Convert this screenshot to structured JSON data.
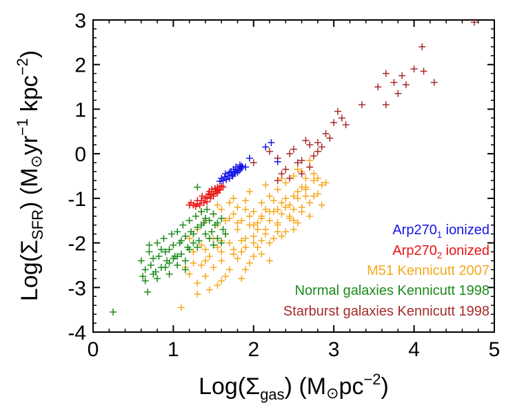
{
  "chart_data": {
    "type": "scatter",
    "title": "",
    "xlabel": "Log(Σgas) (M⊙pc⁻²)",
    "ylabel": "Log(ΣSFR) (M⊙yr⁻¹ kpc⁻²)",
    "xlabel_parts": {
      "pre": "Log(Σ",
      "sub": "gas",
      "mid": ") (M",
      "sun": "⊙",
      "unit": "pc",
      "sup": "−2",
      "post": ")"
    },
    "ylabel_parts": {
      "pre": "Log(Σ",
      "sub": "SFR",
      "mid": ") (M",
      "sun": "⊙",
      "unit1": "yr",
      "sup1": "−1",
      "unit2": " kpc",
      "sup2": "−2",
      "post": ")"
    },
    "xlim": [
      0,
      5
    ],
    "ylim": [
      -4,
      3
    ],
    "xticks": [
      "0",
      "1",
      "2",
      "3",
      "4",
      "5"
    ],
    "yticks": [
      "-4",
      "-3",
      "-2",
      "-1",
      "0",
      "1",
      "2",
      "3"
    ],
    "grid": false,
    "legend_position": "bottom-right",
    "marker": "+",
    "series": [
      {
        "name": "Arp270₁ ionized",
        "label_base": "Arp270",
        "label_sub": "1",
        "label_suffix": " ionized",
        "color": "#1414e6",
        "points": [
          [
            1.65,
            -0.45
          ],
          [
            1.68,
            -0.5
          ],
          [
            1.7,
            -0.42
          ],
          [
            1.72,
            -0.4
          ],
          [
            1.73,
            -0.48
          ],
          [
            1.75,
            -0.35
          ],
          [
            1.76,
            -0.45
          ],
          [
            1.78,
            -0.3
          ],
          [
            1.8,
            -0.35
          ],
          [
            1.82,
            -0.38
          ],
          [
            1.83,
            -0.25
          ],
          [
            1.85,
            -0.28
          ],
          [
            1.6,
            -0.55
          ],
          [
            1.62,
            -0.6
          ],
          [
            1.64,
            -0.52
          ],
          [
            1.66,
            -0.58
          ],
          [
            1.7,
            -0.55
          ],
          [
            1.74,
            -0.5
          ],
          [
            1.77,
            -0.4
          ],
          [
            1.8,
            -0.42
          ],
          [
            1.84,
            -0.33
          ],
          [
            1.86,
            -0.3
          ],
          [
            1.58,
            -0.62
          ],
          [
            1.9,
            -0.3
          ],
          [
            1.95,
            -0.1
          ],
          [
            2.15,
            0.15
          ],
          [
            2.22,
            0.25
          ],
          [
            2.3,
            -0.18
          ]
        ]
      },
      {
        "name": "Arp270₂ ionized",
        "label_base": "Arp270",
        "label_sub": "2",
        "label_suffix": " ionized",
        "color": "#e81414",
        "points": [
          [
            1.2,
            -1.15
          ],
          [
            1.25,
            -1.15
          ],
          [
            1.28,
            -1.18
          ],
          [
            1.3,
            -1.12
          ],
          [
            1.33,
            -1.15
          ],
          [
            1.35,
            -1.05
          ],
          [
            1.38,
            -1.1
          ],
          [
            1.4,
            -1.0
          ],
          [
            1.42,
            -0.98
          ],
          [
            1.44,
            -0.9
          ],
          [
            1.45,
            -0.85
          ],
          [
            1.47,
            -0.92
          ],
          [
            1.48,
            -0.8
          ],
          [
            1.5,
            -0.9
          ],
          [
            1.52,
            -0.78
          ],
          [
            1.53,
            -0.85
          ],
          [
            1.55,
            -0.75
          ],
          [
            1.56,
            -0.82
          ],
          [
            1.58,
            -0.8
          ],
          [
            1.6,
            -0.72
          ],
          [
            1.62,
            -0.75
          ],
          [
            1.42,
            -1.08
          ],
          [
            1.46,
            -1.0
          ],
          [
            1.5,
            -0.95
          ],
          [
            1.36,
            -0.95
          ],
          [
            1.55,
            -0.88
          ],
          [
            1.3,
            -1.05
          ],
          [
            1.22,
            -1.1
          ]
        ]
      },
      {
        "name": "M51 Kennicutt 2007",
        "color": "#f5a81c",
        "points": [
          [
            1.1,
            -3.45
          ],
          [
            1.2,
            -2.7
          ],
          [
            1.25,
            -2.2
          ],
          [
            1.3,
            -2.9
          ],
          [
            1.35,
            -2.5
          ],
          [
            1.4,
            -2.15
          ],
          [
            1.45,
            -2.3
          ],
          [
            1.5,
            -1.9
          ],
          [
            1.55,
            -2.1
          ],
          [
            1.6,
            -2.4
          ],
          [
            1.65,
            -1.8
          ],
          [
            1.7,
            -2.0
          ],
          [
            1.75,
            -2.25
          ],
          [
            1.8,
            -1.7
          ],
          [
            1.85,
            -1.95
          ],
          [
            1.9,
            -2.6
          ],
          [
            1.95,
            -1.6
          ],
          [
            2.0,
            -1.85
          ],
          [
            2.05,
            -2.1
          ],
          [
            2.1,
            -1.4
          ],
          [
            2.15,
            -1.7
          ],
          [
            2.2,
            -2.0
          ],
          [
            2.25,
            -1.3
          ],
          [
            2.3,
            -1.55
          ],
          [
            2.35,
            -1.85
          ],
          [
            2.4,
            -1.2
          ],
          [
            2.45,
            -1.45
          ],
          [
            2.5,
            -1.7
          ],
          [
            2.55,
            -1.0
          ],
          [
            2.6,
            -1.3
          ],
          [
            2.65,
            -0.8
          ],
          [
            2.7,
            -1.1
          ],
          [
            2.75,
            -0.6
          ],
          [
            2.8,
            -0.9
          ],
          [
            2.85,
            -0.7
          ],
          [
            1.4,
            -1.5
          ],
          [
            1.5,
            -1.35
          ],
          [
            1.6,
            -1.25
          ],
          [
            1.7,
            -1.45
          ],
          [
            1.8,
            -1.2
          ],
          [
            1.9,
            -1.05
          ],
          [
            2.0,
            -1.3
          ],
          [
            2.1,
            -1.1
          ],
          [
            2.2,
            -0.95
          ],
          [
            2.3,
            -0.8
          ],
          [
            2.4,
            -0.65
          ],
          [
            2.5,
            -0.5
          ],
          [
            2.6,
            -0.4
          ],
          [
            2.7,
            -0.3
          ],
          [
            1.3,
            -1.7
          ],
          [
            1.45,
            -1.9
          ],
          [
            1.55,
            -1.6
          ],
          [
            1.65,
            -1.5
          ],
          [
            1.75,
            -1.35
          ],
          [
            1.85,
            -1.5
          ],
          [
            1.95,
            -1.4
          ],
          [
            2.05,
            -1.55
          ],
          [
            2.15,
            -1.25
          ],
          [
            2.25,
            -1.05
          ],
          [
            2.35,
            -1.35
          ],
          [
            2.45,
            -1.15
          ],
          [
            2.55,
            -0.85
          ],
          [
            2.65,
            -0.55
          ],
          [
            2.75,
            -0.45
          ],
          [
            1.2,
            -1.9
          ],
          [
            1.35,
            -2.05
          ],
          [
            1.5,
            -2.55
          ],
          [
            1.65,
            -2.75
          ],
          [
            1.8,
            -2.35
          ],
          [
            1.95,
            -2.45
          ],
          [
            2.1,
            -2.25
          ],
          [
            2.25,
            -1.9
          ],
          [
            2.4,
            -1.75
          ],
          [
            2.55,
            -1.55
          ],
          [
            2.7,
            -1.4
          ],
          [
            2.85,
            -1.15
          ],
          [
            1.25,
            -2.45
          ],
          [
            1.4,
            -2.75
          ],
          [
            1.55,
            -2.95
          ],
          [
            1.7,
            -2.6
          ],
          [
            1.85,
            -2.2
          ],
          [
            2.0,
            -2.0
          ],
          [
            2.15,
            -1.8
          ],
          [
            2.3,
            -1.6
          ],
          [
            2.45,
            -1.4
          ],
          [
            2.6,
            -1.2
          ],
          [
            2.75,
            -0.95
          ],
          [
            1.3,
            -3.15
          ],
          [
            1.45,
            -3.05
          ],
          [
            1.6,
            -2.85
          ],
          [
            1.75,
            -2.15
          ],
          [
            1.9,
            -1.9
          ],
          [
            2.05,
            -1.7
          ],
          [
            2.2,
            -1.5
          ],
          [
            2.35,
            -1.1
          ],
          [
            2.5,
            -0.95
          ],
          [
            2.65,
            -0.75
          ],
          [
            2.8,
            -0.55
          ],
          [
            1.55,
            -1.15
          ],
          [
            1.75,
            -1.0
          ],
          [
            1.95,
            -0.85
          ],
          [
            2.15,
            -0.7
          ],
          [
            2.35,
            -0.55
          ],
          [
            2.55,
            -0.35
          ],
          [
            2.7,
            -0.15
          ],
          [
            2.9,
            -0.65
          ],
          [
            2.0,
            -2.3
          ],
          [
            2.2,
            -2.4
          ],
          [
            1.85,
            -2.8
          ],
          [
            1.15,
            -2.55
          ],
          [
            1.35,
            -1.3
          ],
          [
            1.6,
            -1.95
          ],
          [
            1.8,
            -1.55
          ],
          [
            2.0,
            -1.6
          ],
          [
            2.2,
            -1.3
          ],
          [
            2.4,
            -1.0
          ],
          [
            2.6,
            -0.75
          ],
          [
            1.7,
            -1.1
          ],
          [
            1.9,
            -1.25
          ],
          [
            2.1,
            -1.45
          ],
          [
            2.3,
            -1.25
          ],
          [
            2.5,
            -1.25
          ],
          [
            2.65,
            -0.95
          ],
          [
            1.4,
            -2.4
          ],
          [
            1.6,
            -2.2
          ],
          [
            1.9,
            -2.1
          ],
          [
            2.1,
            -1.95
          ],
          [
            2.3,
            -1.75
          ],
          [
            2.5,
            -1.5
          ]
        ]
      },
      {
        "name": "Normal galaxies Kennicutt 1998",
        "color": "#1a8a1a",
        "points": [
          [
            0.25,
            -3.55
          ],
          [
            0.6,
            -2.4
          ],
          [
            0.62,
            -2.75
          ],
          [
            0.65,
            -2.85
          ],
          [
            0.68,
            -3.1
          ],
          [
            0.7,
            -2.2
          ],
          [
            0.72,
            -2.5
          ],
          [
            0.75,
            -2.35
          ],
          [
            0.78,
            -2.65
          ],
          [
            0.8,
            -2.0
          ],
          [
            0.82,
            -2.3
          ],
          [
            0.85,
            -2.55
          ],
          [
            0.88,
            -1.9
          ],
          [
            0.9,
            -2.2
          ],
          [
            0.92,
            -2.4
          ],
          [
            0.95,
            -2.7
          ],
          [
            0.98,
            -1.8
          ],
          [
            1.0,
            -2.05
          ],
          [
            1.02,
            -2.3
          ],
          [
            1.05,
            -1.75
          ],
          [
            1.08,
            -2.0
          ],
          [
            1.1,
            -2.25
          ],
          [
            1.12,
            -1.6
          ],
          [
            1.15,
            -1.85
          ],
          [
            1.18,
            -2.1
          ],
          [
            1.2,
            -1.5
          ],
          [
            1.22,
            -1.75
          ],
          [
            1.25,
            -2.0
          ],
          [
            1.28,
            -1.4
          ],
          [
            1.3,
            -1.65
          ],
          [
            1.32,
            -1.95
          ],
          [
            1.35,
            -1.3
          ],
          [
            1.38,
            -1.55
          ],
          [
            1.4,
            -1.8
          ],
          [
            1.42,
            -1.25
          ],
          [
            1.45,
            -1.5
          ],
          [
            1.48,
            -1.75
          ],
          [
            1.5,
            -1.35
          ],
          [
            1.52,
            -1.6
          ],
          [
            1.55,
            -1.9
          ],
          [
            1.3,
            -0.75
          ],
          [
            1.6,
            -1.45
          ],
          [
            1.62,
            -1.7
          ],
          [
            0.8,
            -2.8
          ],
          [
            0.95,
            -2.45
          ],
          [
            1.05,
            -2.5
          ],
          [
            1.15,
            -2.6
          ],
          [
            0.7,
            -2.05
          ],
          [
            0.85,
            -2.15
          ],
          [
            1.0,
            -2.35
          ],
          [
            0.9,
            -2.55
          ],
          [
            1.1,
            -1.95
          ],
          [
            1.2,
            -2.15
          ],
          [
            1.25,
            -1.8
          ],
          [
            1.35,
            -1.6
          ],
          [
            1.45,
            -1.9
          ],
          [
            1.6,
            -2.0
          ],
          [
            1.55,
            -1.55
          ],
          [
            1.4,
            -1.45
          ],
          [
            0.75,
            -2.7
          ],
          [
            0.65,
            -2.6
          ],
          [
            0.95,
            -2.15
          ],
          [
            1.05,
            -2.3
          ],
          [
            1.15,
            -2.4
          ],
          [
            1.3,
            -2.1
          ],
          [
            1.5,
            -2.05
          ],
          [
            1.65,
            -1.8
          ]
        ]
      },
      {
        "name": "Starburst galaxies Kennicutt 1998",
        "color": "#a52a2a",
        "points": [
          [
            1.85,
            -0.3
          ],
          [
            2.0,
            -0.2
          ],
          [
            2.2,
            0.05
          ],
          [
            2.3,
            -0.1
          ],
          [
            2.35,
            -0.45
          ],
          [
            2.4,
            -0.35
          ],
          [
            2.5,
            0.1
          ],
          [
            2.55,
            -0.2
          ],
          [
            2.6,
            -0.15
          ],
          [
            2.65,
            0.3
          ],
          [
            2.7,
            0.2
          ],
          [
            2.75,
            -0.05
          ],
          [
            2.8,
            0.25
          ],
          [
            2.85,
            0.15
          ],
          [
            2.9,
            0.45
          ],
          [
            2.95,
            0.35
          ],
          [
            3.0,
            0.7
          ],
          [
            3.05,
            0.95
          ],
          [
            3.1,
            0.8
          ],
          [
            3.15,
            0.65
          ],
          [
            3.35,
            1.1
          ],
          [
            3.55,
            1.5
          ],
          [
            3.65,
            1.1
          ],
          [
            3.75,
            1.6
          ],
          [
            3.8,
            1.35
          ],
          [
            3.85,
            1.75
          ],
          [
            3.9,
            1.55
          ],
          [
            4.0,
            1.9
          ],
          [
            4.1,
            2.4
          ],
          [
            4.12,
            1.85
          ],
          [
            4.25,
            1.6
          ],
          [
            2.45,
            0.0
          ],
          [
            2.6,
            -0.45
          ],
          [
            2.7,
            -0.3
          ],
          [
            2.8,
            0.05
          ],
          [
            3.65,
            1.8
          ],
          [
            4.75,
            2.95
          ],
          [
            2.3,
            -0.6
          ],
          [
            2.45,
            -0.55
          ]
        ]
      }
    ]
  }
}
